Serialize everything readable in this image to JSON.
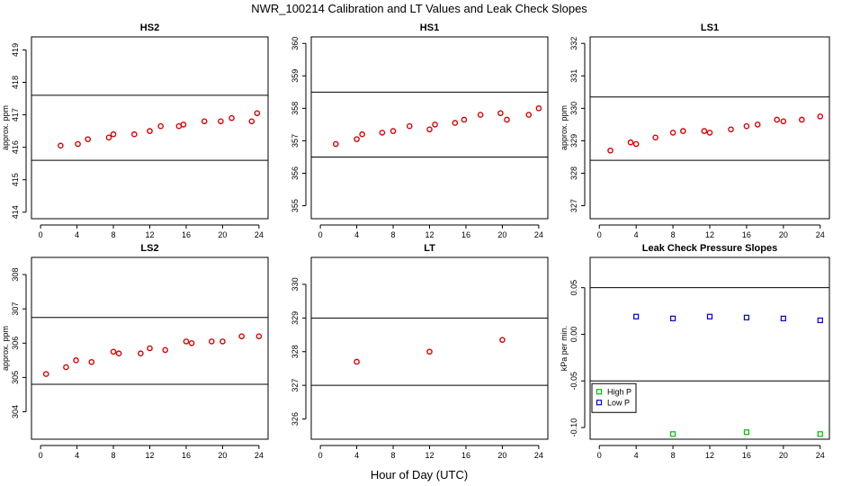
{
  "figure": {
    "title": "NWR_100214  Calibration and LT Values and Leak Check Slopes",
    "xlabel": "Hour of Day (UTC)"
  },
  "colors": {
    "cal_points": "#dd0000",
    "high_p": "#00bb00",
    "low_p": "#0000cc",
    "axis": "#000000"
  },
  "chart_data": [
    {
      "type": "scatter",
      "title": "HS2",
      "ylabel": "approx. ppm",
      "xlim": [
        -1,
        25
      ],
      "ylim": [
        413.8,
        419.4
      ],
      "xticks": [
        0,
        4,
        8,
        12,
        16,
        20,
        24
      ],
      "yticks": [
        414,
        415,
        416,
        417,
        418,
        419
      ],
      "hlines": [
        417.6,
        415.6
      ],
      "marker": "circle",
      "color": "#dd0000",
      "x": [
        2.2,
        4.1,
        5.2,
        7.5,
        8.0,
        10.3,
        12.0,
        13.2,
        15.2,
        15.7,
        18.0,
        19.8,
        21.0,
        23.2,
        23.8
      ],
      "y": [
        416.05,
        416.1,
        416.25,
        416.3,
        416.4,
        416.4,
        416.5,
        416.65,
        416.65,
        416.7,
        416.8,
        416.8,
        416.9,
        416.8,
        417.05
      ]
    },
    {
      "type": "scatter",
      "title": "HS1",
      "ylabel": "",
      "xlim": [
        -1,
        25
      ],
      "ylim": [
        354.6,
        360.2
      ],
      "xticks": [
        0,
        4,
        8,
        12,
        16,
        20,
        24
      ],
      "yticks": [
        355,
        356,
        357,
        358,
        359,
        360
      ],
      "hlines": [
        358.5,
        356.5
      ],
      "marker": "circle",
      "color": "#dd0000",
      "x": [
        1.7,
        4.0,
        4.6,
        6.8,
        8.0,
        9.8,
        12.0,
        12.6,
        14.8,
        15.8,
        17.6,
        19.8,
        20.5,
        22.9,
        24.0
      ],
      "y": [
        356.9,
        357.05,
        357.2,
        357.25,
        357.3,
        357.45,
        357.35,
        357.5,
        357.55,
        357.65,
        357.8,
        357.85,
        357.65,
        357.8,
        358.0
      ]
    },
    {
      "type": "scatter",
      "title": "LS1",
      "ylabel": "approx. ppm",
      "xlim": [
        -1,
        25
      ],
      "ylim": [
        326.6,
        332.2
      ],
      "xticks": [
        0,
        4,
        8,
        12,
        16,
        20,
        24
      ],
      "yticks": [
        327,
        328,
        329,
        330,
        331,
        332
      ],
      "hlines": [
        330.35,
        328.4
      ],
      "marker": "circle",
      "color": "#dd0000",
      "x": [
        1.2,
        3.4,
        4.0,
        6.1,
        8.0,
        9.1,
        11.4,
        12.0,
        14.3,
        16.0,
        17.2,
        19.3,
        20.0,
        22.0,
        24.0
      ],
      "y": [
        328.7,
        328.95,
        328.9,
        329.1,
        329.25,
        329.3,
        329.3,
        329.25,
        329.35,
        329.45,
        329.5,
        329.65,
        329.6,
        329.65,
        329.75
      ]
    },
    {
      "type": "scatter",
      "title": "LS2",
      "ylabel": "approx. ppm",
      "xlim": [
        -1,
        25
      ],
      "ylim": [
        303.2,
        308.5
      ],
      "xticks": [
        0,
        4,
        8,
        12,
        16,
        20,
        24
      ],
      "yticks": [
        304,
        305,
        306,
        307,
        308
      ],
      "hlines": [
        306.75,
        304.8
      ],
      "marker": "circle",
      "color": "#dd0000",
      "x": [
        0.6,
        2.8,
        3.9,
        5.6,
        8.0,
        8.6,
        11.0,
        12.0,
        13.7,
        16.0,
        16.6,
        18.8,
        20.0,
        22.1,
        24.0
      ],
      "y": [
        305.1,
        305.3,
        305.5,
        305.45,
        305.75,
        305.7,
        305.7,
        305.85,
        305.8,
        306.05,
        306.0,
        306.05,
        306.05,
        306.2,
        306.2
      ]
    },
    {
      "type": "scatter",
      "title": "LT",
      "ylabel": "",
      "xlim": [
        -1,
        25
      ],
      "ylim": [
        325.4,
        330.8
      ],
      "xticks": [
        0,
        4,
        8,
        12,
        16,
        20,
        24
      ],
      "yticks": [
        326,
        327,
        328,
        329,
        330
      ],
      "hlines": [
        329.0,
        327.0
      ],
      "marker": "circle",
      "color": "#dd0000",
      "x": [
        4.0,
        12.0,
        20.0
      ],
      "y": [
        327.7,
        328.0,
        328.35
      ]
    },
    {
      "type": "scatter",
      "title": "Leak Check Pressure Slopes",
      "ylabel": "kPa per min.",
      "xlim": [
        -1,
        25
      ],
      "ylim": [
        -0.1125,
        0.0825
      ],
      "xticks": [
        0,
        4,
        8,
        12,
        16,
        20,
        24
      ],
      "yticks": [
        -0.1,
        -0.05,
        0.0,
        0.05
      ],
      "ytick_labels": [
        "-0.10",
        "-0.05",
        "0.00",
        "0.05"
      ],
      "hlines": [
        0.05,
        -0.05
      ],
      "legend": {
        "position": "bottom-left"
      },
      "series": [
        {
          "name": "High P",
          "marker": "square",
          "color": "#00bb00",
          "x": [
            8,
            16,
            24
          ],
          "y": [
            -0.107,
            -0.105,
            -0.107
          ]
        },
        {
          "name": "Low P",
          "marker": "square",
          "color": "#0000cc",
          "x": [
            4,
            8,
            12,
            16,
            20,
            24
          ],
          "y": [
            0.019,
            0.017,
            0.019,
            0.018,
            0.017,
            0.015
          ]
        }
      ]
    }
  ]
}
